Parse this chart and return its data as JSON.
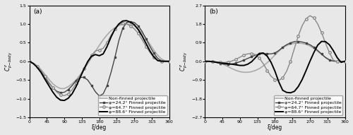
{
  "fig_width": 5.0,
  "fig_height": 1.91,
  "dpi": 100,
  "panel_a": {
    "label": "(a)",
    "ylim": [
      -1.5,
      1.5
    ],
    "yticks": [
      -1.5,
      -1.0,
      -0.5,
      0.0,
      0.5,
      1.0,
      1.5
    ],
    "xlim": [
      0,
      360
    ],
    "xticks": [
      0,
      45,
      90,
      135,
      180,
      225,
      270,
      315,
      360
    ],
    "xlabel": "ξ/deg",
    "ylabel": "$C^z_{p\\text{-body}}$",
    "non_finned_x": [
      0,
      10,
      20,
      30,
      40,
      50,
      60,
      70,
      80,
      90,
      100,
      110,
      120,
      130,
      140,
      150,
      160,
      170,
      180,
      190,
      200,
      210,
      220,
      230,
      240,
      250,
      260,
      270,
      280,
      290,
      300,
      310,
      320,
      330,
      340,
      350,
      360
    ],
    "non_finned_y": [
      0.0,
      -0.05,
      -0.12,
      -0.22,
      -0.35,
      -0.48,
      -0.6,
      -0.68,
      -0.73,
      -0.73,
      -0.68,
      -0.6,
      -0.5,
      -0.37,
      -0.22,
      -0.07,
      0.1,
      0.27,
      0.43,
      0.58,
      0.71,
      0.82,
      0.9,
      0.96,
      0.99,
      1.0,
      0.99,
      0.95,
      0.87,
      0.76,
      0.62,
      0.46,
      0.3,
      0.16,
      0.06,
      0.01,
      0.0
    ],
    "non_finned_color": "#aaaaaa",
    "non_finned_lw": 1.2,
    "phi242_x": [
      0,
      10,
      20,
      30,
      40,
      50,
      60,
      70,
      80,
      90,
      100,
      110,
      120,
      130,
      140,
      150,
      160,
      170,
      180,
      190,
      200,
      210,
      220,
      230,
      240,
      250,
      260,
      270,
      280,
      290,
      300,
      310,
      320,
      330,
      340,
      350,
      360
    ],
    "phi242_y": [
      0.0,
      -0.06,
      -0.15,
      -0.28,
      -0.43,
      -0.58,
      -0.7,
      -0.8,
      -0.84,
      -0.83,
      -0.76,
      -0.65,
      -0.52,
      -0.43,
      -0.43,
      -0.5,
      -0.65,
      -0.82,
      -0.93,
      -0.87,
      -0.65,
      -0.3,
      0.1,
      0.55,
      0.88,
      1.04,
      1.06,
      1.04,
      0.95,
      0.8,
      0.6,
      0.4,
      0.22,
      0.08,
      0.01,
      0.0,
      0.0
    ],
    "phi242_color": "#444444",
    "phi242_lw": 1.0,
    "phi242_marker": "s",
    "phi242_ms": 2.0,
    "phi647_x": [
      0,
      10,
      20,
      30,
      40,
      50,
      60,
      70,
      80,
      90,
      100,
      110,
      120,
      130,
      140,
      150,
      160,
      170,
      180,
      190,
      200,
      210,
      220,
      230,
      240,
      250,
      260,
      270,
      280,
      290,
      300,
      310,
      320,
      330,
      340,
      350,
      360
    ],
    "phi647_y": [
      0.0,
      -0.05,
      -0.13,
      -0.25,
      -0.4,
      -0.56,
      -0.7,
      -0.82,
      -0.9,
      -0.92,
      -0.87,
      -0.76,
      -0.6,
      -0.4,
      -0.2,
      -0.01,
      0.16,
      0.28,
      0.3,
      0.35,
      0.5,
      0.7,
      0.86,
      0.98,
      1.01,
      1.0,
      0.95,
      0.87,
      0.75,
      0.58,
      0.4,
      0.24,
      0.1,
      0.02,
      0.0,
      0.0,
      0.0
    ],
    "phi647_color": "#888888",
    "phi647_lw": 1.0,
    "phi647_marker": "o",
    "phi647_ms": 2.5,
    "phi886_x": [
      0,
      10,
      20,
      30,
      40,
      50,
      60,
      70,
      80,
      90,
      100,
      110,
      120,
      130,
      140,
      150,
      160,
      170,
      180,
      190,
      200,
      210,
      220,
      230,
      240,
      250,
      260,
      270,
      280,
      290,
      300,
      310,
      320,
      330,
      340,
      350,
      360
    ],
    "phi886_y": [
      0.0,
      -0.06,
      -0.16,
      -0.3,
      -0.48,
      -0.65,
      -0.82,
      -0.96,
      -1.04,
      -1.05,
      -0.99,
      -0.87,
      -0.68,
      -0.45,
      -0.22,
      -0.01,
      0.14,
      0.18,
      0.15,
      0.2,
      0.4,
      0.65,
      0.86,
      1.0,
      1.08,
      1.09,
      1.05,
      0.98,
      0.85,
      0.68,
      0.48,
      0.28,
      0.12,
      0.02,
      0.0,
      0.0,
      0.0
    ],
    "phi886_color": "#000000",
    "phi886_lw": 1.4,
    "legend_labels": [
      "Non-finned projectile",
      "φ=24.2° Finned projectile",
      "φ=64.7° Finned projectile",
      "φ=88.6° Finned projectile"
    ],
    "legend_fontsize": 4.5
  },
  "panel_b": {
    "label": "(b)",
    "ylim": [
      -2.7,
      2.7
    ],
    "yticks": [
      -2.7,
      -1.8,
      -0.9,
      0.0,
      0.9,
      1.8,
      2.7
    ],
    "xlim": [
      0,
      360
    ],
    "xticks": [
      0,
      45,
      90,
      135,
      180,
      225,
      270,
      315,
      360
    ],
    "xlabel": "ξ/deg",
    "ylabel": "$C^z_{p\\text{-body}}$",
    "non_finned_x": [
      0,
      10,
      20,
      30,
      40,
      50,
      60,
      70,
      80,
      90,
      100,
      110,
      120,
      130,
      140,
      150,
      160,
      170,
      180,
      190,
      200,
      210,
      220,
      230,
      240,
      250,
      260,
      270,
      280,
      290,
      300,
      310,
      320,
      330,
      340,
      350,
      360
    ],
    "non_finned_y": [
      0.0,
      0.0,
      -0.01,
      -0.04,
      -0.09,
      -0.17,
      -0.26,
      -0.36,
      -0.44,
      -0.5,
      -0.53,
      -0.53,
      -0.5,
      -0.44,
      -0.35,
      -0.22,
      -0.07,
      0.11,
      0.3,
      0.49,
      0.65,
      0.76,
      0.83,
      0.87,
      0.88,
      0.86,
      0.82,
      0.74,
      0.62,
      0.48,
      0.33,
      0.19,
      0.08,
      0.02,
      0.0,
      0.0,
      0.0
    ],
    "non_finned_color": "#aaaaaa",
    "non_finned_lw": 1.2,
    "phi242_x": [
      0,
      10,
      20,
      30,
      40,
      50,
      60,
      70,
      80,
      90,
      100,
      110,
      120,
      130,
      140,
      150,
      160,
      170,
      180,
      190,
      200,
      210,
      220,
      230,
      240,
      250,
      260,
      270,
      280,
      290,
      300,
      310,
      320,
      330,
      340,
      350,
      360
    ],
    "phi242_y": [
      0.0,
      0.0,
      -0.02,
      -0.06,
      -0.1,
      -0.14,
      -0.15,
      -0.13,
      -0.08,
      -0.02,
      0.06,
      0.14,
      0.22,
      0.3,
      0.36,
      0.37,
      0.36,
      0.36,
      0.4,
      0.52,
      0.68,
      0.8,
      0.89,
      0.95,
      0.96,
      0.93,
      0.88,
      0.8,
      0.68,
      0.52,
      0.35,
      0.18,
      0.06,
      0.01,
      0.0,
      0.0,
      0.0
    ],
    "phi242_color": "#444444",
    "phi242_lw": 1.0,
    "phi242_marker": "s",
    "phi242_ms": 2.0,
    "phi647_x": [
      0,
      10,
      20,
      30,
      40,
      50,
      60,
      70,
      80,
      90,
      100,
      110,
      120,
      130,
      140,
      150,
      160,
      170,
      180,
      190,
      200,
      210,
      220,
      230,
      240,
      250,
      260,
      270,
      280,
      290,
      300,
      310,
      320,
      330,
      340,
      350,
      360
    ],
    "phi647_y": [
      0.0,
      0.0,
      -0.01,
      -0.03,
      -0.05,
      -0.06,
      -0.04,
      0.02,
      0.1,
      0.2,
      0.3,
      0.36,
      0.38,
      0.32,
      0.15,
      -0.12,
      -0.44,
      -0.72,
      -0.88,
      -0.92,
      -0.8,
      -0.48,
      0.0,
      0.62,
      1.22,
      1.72,
      2.05,
      2.2,
      2.1,
      1.8,
      1.38,
      0.88,
      0.42,
      0.06,
      -0.02,
      -0.02,
      0.0
    ],
    "phi647_color": "#888888",
    "phi647_lw": 1.0,
    "phi647_marker": "o",
    "phi647_ms": 2.5,
    "phi886_x": [
      0,
      10,
      20,
      30,
      40,
      50,
      60,
      70,
      80,
      90,
      100,
      110,
      120,
      130,
      140,
      150,
      160,
      170,
      180,
      190,
      200,
      210,
      220,
      230,
      240,
      250,
      260,
      270,
      280,
      290,
      300,
      310,
      320,
      330,
      340,
      350,
      360
    ],
    "phi886_y": [
      0.0,
      0.0,
      -0.02,
      -0.05,
      -0.08,
      -0.1,
      -0.12,
      -0.14,
      -0.17,
      -0.2,
      -0.2,
      -0.14,
      -0.02,
      0.18,
      0.38,
      0.4,
      0.25,
      -0.05,
      -0.48,
      -1.0,
      -1.4,
      -1.5,
      -1.52,
      -1.45,
      -1.22,
      -0.88,
      -0.45,
      0.0,
      0.42,
      0.78,
      0.96,
      0.95,
      0.8,
      0.52,
      0.18,
      -0.05,
      0.0
    ],
    "phi886_color": "#000000",
    "phi886_lw": 1.4,
    "legend_labels": [
      "Non-finned projectile",
      "φ=24.2° Finned projectile",
      "φ=64.7° Finned projectile",
      "φ=88.6° Finned projectile"
    ],
    "legend_fontsize": 4.5
  },
  "bg_color": "#e8e8e8"
}
